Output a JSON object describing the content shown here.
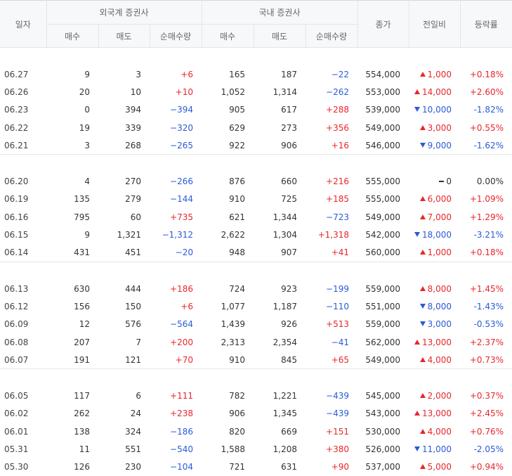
{
  "headers": {
    "date": "일자",
    "foreign_group": "외국계 증권사",
    "domestic_group": "국내 증권사",
    "buy": "매수",
    "sell": "매도",
    "net": "순매수량",
    "close": "종가",
    "change": "전일비",
    "rate": "등락률"
  },
  "colors": {
    "up": "#e8262c",
    "down": "#2a5ad8",
    "flat": "#333333"
  },
  "groups": [
    {
      "rows": [
        {
          "date": "06.27",
          "f_buy": "9",
          "f_sell": "3",
          "f_net": "+6",
          "f_net_dir": "up",
          "d_buy": "165",
          "d_sell": "187",
          "d_net": "−22",
          "d_net_dir": "dn",
          "close": "554,000",
          "chg_dir": "up",
          "chg": "1,000",
          "rate": "+0.18%"
        },
        {
          "date": "06.26",
          "f_buy": "20",
          "f_sell": "10",
          "f_net": "+10",
          "f_net_dir": "up",
          "d_buy": "1,052",
          "d_sell": "1,314",
          "d_net": "−262",
          "d_net_dir": "dn",
          "close": "553,000",
          "chg_dir": "up",
          "chg": "14,000",
          "rate": "+2.60%"
        },
        {
          "date": "06.23",
          "f_buy": "0",
          "f_sell": "394",
          "f_net": "−394",
          "f_net_dir": "dn",
          "d_buy": "905",
          "d_sell": "617",
          "d_net": "+288",
          "d_net_dir": "up",
          "close": "539,000",
          "chg_dir": "dn",
          "chg": "10,000",
          "rate": "-1.82%"
        },
        {
          "date": "06.22",
          "f_buy": "19",
          "f_sell": "339",
          "f_net": "−320",
          "f_net_dir": "dn",
          "d_buy": "629",
          "d_sell": "273",
          "d_net": "+356",
          "d_net_dir": "up",
          "close": "549,000",
          "chg_dir": "up",
          "chg": "3,000",
          "rate": "+0.55%"
        },
        {
          "date": "06.21",
          "f_buy": "3",
          "f_sell": "268",
          "f_net": "−265",
          "f_net_dir": "dn",
          "d_buy": "922",
          "d_sell": "906",
          "d_net": "+16",
          "d_net_dir": "up",
          "close": "546,000",
          "chg_dir": "dn",
          "chg": "9,000",
          "rate": "-1.62%"
        }
      ]
    },
    {
      "rows": [
        {
          "date": "06.20",
          "f_buy": "4",
          "f_sell": "270",
          "f_net": "−266",
          "f_net_dir": "dn",
          "d_buy": "876",
          "d_sell": "660",
          "d_net": "+216",
          "d_net_dir": "up",
          "close": "555,000",
          "chg_dir": "fl",
          "chg": "0",
          "rate": "0.00%"
        },
        {
          "date": "06.19",
          "f_buy": "135",
          "f_sell": "279",
          "f_net": "−144",
          "f_net_dir": "dn",
          "d_buy": "910",
          "d_sell": "725",
          "d_net": "+185",
          "d_net_dir": "up",
          "close": "555,000",
          "chg_dir": "up",
          "chg": "6,000",
          "rate": "+1.09%"
        },
        {
          "date": "06.16",
          "f_buy": "795",
          "f_sell": "60",
          "f_net": "+735",
          "f_net_dir": "up",
          "d_buy": "621",
          "d_sell": "1,344",
          "d_net": "−723",
          "d_net_dir": "dn",
          "close": "549,000",
          "chg_dir": "up",
          "chg": "7,000",
          "rate": "+1.29%"
        },
        {
          "date": "06.15",
          "f_buy": "9",
          "f_sell": "1,321",
          "f_net": "−1,312",
          "f_net_dir": "dn",
          "d_buy": "2,622",
          "d_sell": "1,304",
          "d_net": "+1,318",
          "d_net_dir": "up",
          "close": "542,000",
          "chg_dir": "dn",
          "chg": "18,000",
          "rate": "-3.21%"
        },
        {
          "date": "06.14",
          "f_buy": "431",
          "f_sell": "451",
          "f_net": "−20",
          "f_net_dir": "dn",
          "d_buy": "948",
          "d_sell": "907",
          "d_net": "+41",
          "d_net_dir": "up",
          "close": "560,000",
          "chg_dir": "up",
          "chg": "1,000",
          "rate": "+0.18%"
        }
      ]
    },
    {
      "rows": [
        {
          "date": "06.13",
          "f_buy": "630",
          "f_sell": "444",
          "f_net": "+186",
          "f_net_dir": "up",
          "d_buy": "724",
          "d_sell": "923",
          "d_net": "−199",
          "d_net_dir": "dn",
          "close": "559,000",
          "chg_dir": "up",
          "chg": "8,000",
          "rate": "+1.45%"
        },
        {
          "date": "06.12",
          "f_buy": "156",
          "f_sell": "150",
          "f_net": "+6",
          "f_net_dir": "up",
          "d_buy": "1,077",
          "d_sell": "1,187",
          "d_net": "−110",
          "d_net_dir": "dn",
          "close": "551,000",
          "chg_dir": "dn",
          "chg": "8,000",
          "rate": "-1.43%"
        },
        {
          "date": "06.09",
          "f_buy": "12",
          "f_sell": "576",
          "f_net": "−564",
          "f_net_dir": "dn",
          "d_buy": "1,439",
          "d_sell": "926",
          "d_net": "+513",
          "d_net_dir": "up",
          "close": "559,000",
          "chg_dir": "dn",
          "chg": "3,000",
          "rate": "-0.53%"
        },
        {
          "date": "06.08",
          "f_buy": "207",
          "f_sell": "7",
          "f_net": "+200",
          "f_net_dir": "up",
          "d_buy": "2,313",
          "d_sell": "2,354",
          "d_net": "−41",
          "d_net_dir": "dn",
          "close": "562,000",
          "chg_dir": "up",
          "chg": "13,000",
          "rate": "+2.37%"
        },
        {
          "date": "06.07",
          "f_buy": "191",
          "f_sell": "121",
          "f_net": "+70",
          "f_net_dir": "up",
          "d_buy": "910",
          "d_sell": "845",
          "d_net": "+65",
          "d_net_dir": "up",
          "close": "549,000",
          "chg_dir": "up",
          "chg": "4,000",
          "rate": "+0.73%"
        }
      ]
    },
    {
      "rows": [
        {
          "date": "06.05",
          "f_buy": "117",
          "f_sell": "6",
          "f_net": "+111",
          "f_net_dir": "up",
          "d_buy": "782",
          "d_sell": "1,221",
          "d_net": "−439",
          "d_net_dir": "dn",
          "close": "545,000",
          "chg_dir": "up",
          "chg": "2,000",
          "rate": "+0.37%"
        },
        {
          "date": "06.02",
          "f_buy": "262",
          "f_sell": "24",
          "f_net": "+238",
          "f_net_dir": "up",
          "d_buy": "906",
          "d_sell": "1,345",
          "d_net": "−439",
          "d_net_dir": "dn",
          "close": "543,000",
          "chg_dir": "up",
          "chg": "13,000",
          "rate": "+2.45%"
        },
        {
          "date": "06.01",
          "f_buy": "138",
          "f_sell": "324",
          "f_net": "−186",
          "f_net_dir": "dn",
          "d_buy": "820",
          "d_sell": "669",
          "d_net": "+151",
          "d_net_dir": "up",
          "close": "530,000",
          "chg_dir": "up",
          "chg": "4,000",
          "rate": "+0.76%"
        },
        {
          "date": "05.31",
          "f_buy": "11",
          "f_sell": "551",
          "f_net": "−540",
          "f_net_dir": "dn",
          "d_buy": "1,588",
          "d_sell": "1,208",
          "d_net": "+380",
          "d_net_dir": "up",
          "close": "526,000",
          "chg_dir": "dn",
          "chg": "11,000",
          "rate": "-2.05%"
        },
        {
          "date": "05.30",
          "f_buy": "126",
          "f_sell": "230",
          "f_net": "−104",
          "f_net_dir": "dn",
          "d_buy": "721",
          "d_sell": "631",
          "d_net": "+90",
          "d_net_dir": "up",
          "close": "537,000",
          "chg_dir": "up",
          "chg": "5,000",
          "rate": "+0.94%"
        }
      ]
    }
  ]
}
